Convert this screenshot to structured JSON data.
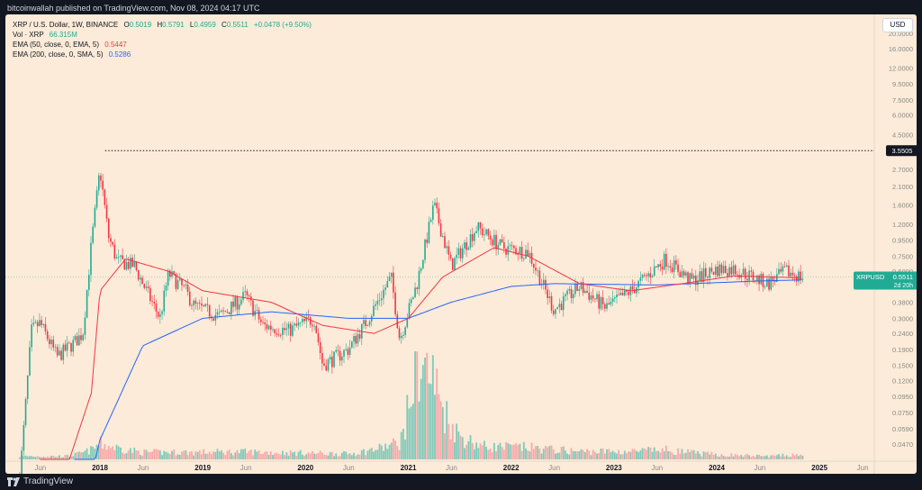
{
  "header": {
    "publisher_line": "bitcoinwallah published on TradingView.com, Nov 08, 2024 04:17 UTC"
  },
  "legend": {
    "symbol_line": "XRP / U.S. Dollar, 1W, BINANCE",
    "open_label": "O",
    "open": "0.5019",
    "high_label": "H",
    "high": "0.5791",
    "low_label": "L",
    "low": "0.4959",
    "close_label": "C",
    "close": "0.5511",
    "change": "+0.0478 (+9.50%)",
    "vol_label": "Vol · XRP",
    "vol": "66.315M",
    "ema50_label": "EMA (50, close, 0, EMA, 5)",
    "ema50": "0.5447",
    "ema200_label": "EMA (200, close, 0, SMA, 5)",
    "ema200": "0.5286"
  },
  "currency_badge": "USD",
  "footer": {
    "brand": "TradingView"
  },
  "colors": {
    "background": "#fbebd8",
    "up": "#22ab94",
    "down": "#f23645",
    "ema50": "#f23645",
    "ema200": "#2962ff",
    "vol_up": "#7fc9ba",
    "vol_down": "#f7a9a9",
    "price_tag": "#22ab94"
  },
  "chart_data": {
    "type": "candlestick",
    "scale": "log",
    "y_ticks": [
      "20.0000",
      "16.0000",
      "12.0000",
      "9.5000",
      "7.5000",
      "6.0000",
      "4.5000",
      "3.5505",
      "2.7000",
      "2.1000",
      "1.6000",
      "1.2000",
      "0.9500",
      "0.7500",
      "0.6000",
      "0.4800",
      "0.3800",
      "0.3000",
      "0.2400",
      "0.1900",
      "0.1500",
      "0.1200",
      "0.0950",
      "0.0750",
      "0.0590",
      "0.0470"
    ],
    "x_ticks": [
      "Jun",
      "2018",
      "Jun",
      "2019",
      "Jun",
      "2020",
      "Jun",
      "2021",
      "Jun",
      "2022",
      "Jun",
      "2023",
      "Jun",
      "2024",
      "Jun",
      "2025",
      "Jun"
    ],
    "ath_line": {
      "value": 3.5505,
      "label": "3.5505"
    },
    "current_price": {
      "symbol": "XRPUSD",
      "value": "0.5511",
      "countdown": "2d 20h"
    },
    "close_series_approx": [
      {
        "t": "2017-03",
        "v": 0.01
      },
      {
        "t": "2017-05",
        "v": 0.25
      },
      {
        "t": "2017-06",
        "v": 0.28
      },
      {
        "t": "2017-08",
        "v": 0.17
      },
      {
        "t": "2017-10",
        "v": 0.21
      },
      {
        "t": "2017-11",
        "v": 0.24
      },
      {
        "t": "2017-12",
        "v": 0.9
      },
      {
        "t": "2018-01",
        "v": 2.7
      },
      {
        "t": "2018-02",
        "v": 1.0
      },
      {
        "t": "2018-03",
        "v": 0.7
      },
      {
        "t": "2018-05",
        "v": 0.65
      },
      {
        "t": "2018-06",
        "v": 0.5
      },
      {
        "t": "2018-08",
        "v": 0.3
      },
      {
        "t": "2018-09",
        "v": 0.58
      },
      {
        "t": "2018-11",
        "v": 0.45
      },
      {
        "t": "2018-12",
        "v": 0.36
      },
      {
        "t": "2019-03",
        "v": 0.31
      },
      {
        "t": "2019-06",
        "v": 0.42
      },
      {
        "t": "2019-08",
        "v": 0.27
      },
      {
        "t": "2019-11",
        "v": 0.25
      },
      {
        "t": "2020-02",
        "v": 0.3
      },
      {
        "t": "2020-03",
        "v": 0.15
      },
      {
        "t": "2020-06",
        "v": 0.19
      },
      {
        "t": "2020-08",
        "v": 0.28
      },
      {
        "t": "2020-11",
        "v": 0.55
      },
      {
        "t": "2020-12",
        "v": 0.22
      },
      {
        "t": "2021-02",
        "v": 0.5
      },
      {
        "t": "2021-04",
        "v": 1.6
      },
      {
        "t": "2021-06",
        "v": 0.65
      },
      {
        "t": "2021-09",
        "v": 1.15
      },
      {
        "t": "2021-12",
        "v": 0.85
      },
      {
        "t": "2022-03",
        "v": 0.8
      },
      {
        "t": "2022-06",
        "v": 0.34
      },
      {
        "t": "2022-09",
        "v": 0.48
      },
      {
        "t": "2022-12",
        "v": 0.35
      },
      {
        "t": "2023-03",
        "v": 0.45
      },
      {
        "t": "2023-07",
        "v": 0.72
      },
      {
        "t": "2023-10",
        "v": 0.52
      },
      {
        "t": "2024-01",
        "v": 0.62
      },
      {
        "t": "2024-03",
        "v": 0.62
      },
      {
        "t": "2024-07",
        "v": 0.5
      },
      {
        "t": "2024-09",
        "v": 0.6
      },
      {
        "t": "2024-11",
        "v": 0.5511
      }
    ],
    "ema50_approx": [
      {
        "t": "2017-06",
        "v": 0.01
      },
      {
        "t": "2017-12",
        "v": 0.1
      },
      {
        "t": "2018-01",
        "v": 0.45
      },
      {
        "t": "2018-04",
        "v": 0.72
      },
      {
        "t": "2018-09",
        "v": 0.6
      },
      {
        "t": "2019-01",
        "v": 0.45
      },
      {
        "t": "2019-09",
        "v": 0.38
      },
      {
        "t": "2020-03",
        "v": 0.27
      },
      {
        "t": "2020-09",
        "v": 0.24
      },
      {
        "t": "2021-01",
        "v": 0.3
      },
      {
        "t": "2021-05",
        "v": 0.55
      },
      {
        "t": "2021-11",
        "v": 0.85
      },
      {
        "t": "2022-03",
        "v": 0.75
      },
      {
        "t": "2022-09",
        "v": 0.5
      },
      {
        "t": "2023-03",
        "v": 0.45
      },
      {
        "t": "2023-09",
        "v": 0.5
      },
      {
        "t": "2024-03",
        "v": 0.56
      },
      {
        "t": "2024-11",
        "v": 0.5447
      }
    ],
    "ema200_approx": [
      {
        "t": "2017-10",
        "v": 0.01
      },
      {
        "t": "2018-01",
        "v": 0.05
      },
      {
        "t": "2018-06",
        "v": 0.2
      },
      {
        "t": "2019-01",
        "v": 0.3
      },
      {
        "t": "2019-09",
        "v": 0.33
      },
      {
        "t": "2020-06",
        "v": 0.3
      },
      {
        "t": "2021-01",
        "v": 0.3
      },
      {
        "t": "2021-06",
        "v": 0.38
      },
      {
        "t": "2022-01",
        "v": 0.48
      },
      {
        "t": "2022-06",
        "v": 0.5
      },
      {
        "t": "2023-06",
        "v": 0.49
      },
      {
        "t": "2024-06",
        "v": 0.52
      },
      {
        "t": "2024-11",
        "v": 0.5286
      }
    ],
    "volume_approx_millions": [
      {
        "t": "2017-09",
        "v": 40
      },
      {
        "t": "2017-12",
        "v": 120
      },
      {
        "t": "2018-01",
        "v": 200
      },
      {
        "t": "2018-06",
        "v": 90
      },
      {
        "t": "2019-01",
        "v": 90
      },
      {
        "t": "2019-06",
        "v": 95
      },
      {
        "t": "2020-01",
        "v": 80
      },
      {
        "t": "2020-06",
        "v": 70
      },
      {
        "t": "2020-12",
        "v": 220
      },
      {
        "t": "2021-01",
        "v": 650
      },
      {
        "t": "2021-02",
        "v": 1300
      },
      {
        "t": "2021-04",
        "v": 1000
      },
      {
        "t": "2021-07",
        "v": 300
      },
      {
        "t": "2021-10",
        "v": 160
      },
      {
        "t": "2022-03",
        "v": 150
      },
      {
        "t": "2022-09",
        "v": 100
      },
      {
        "t": "2023-03",
        "v": 100
      },
      {
        "t": "2023-07",
        "v": 120
      },
      {
        "t": "2024-01",
        "v": 60
      },
      {
        "t": "2024-07",
        "v": 40
      },
      {
        "t": "2024-11",
        "v": 66
      }
    ]
  }
}
